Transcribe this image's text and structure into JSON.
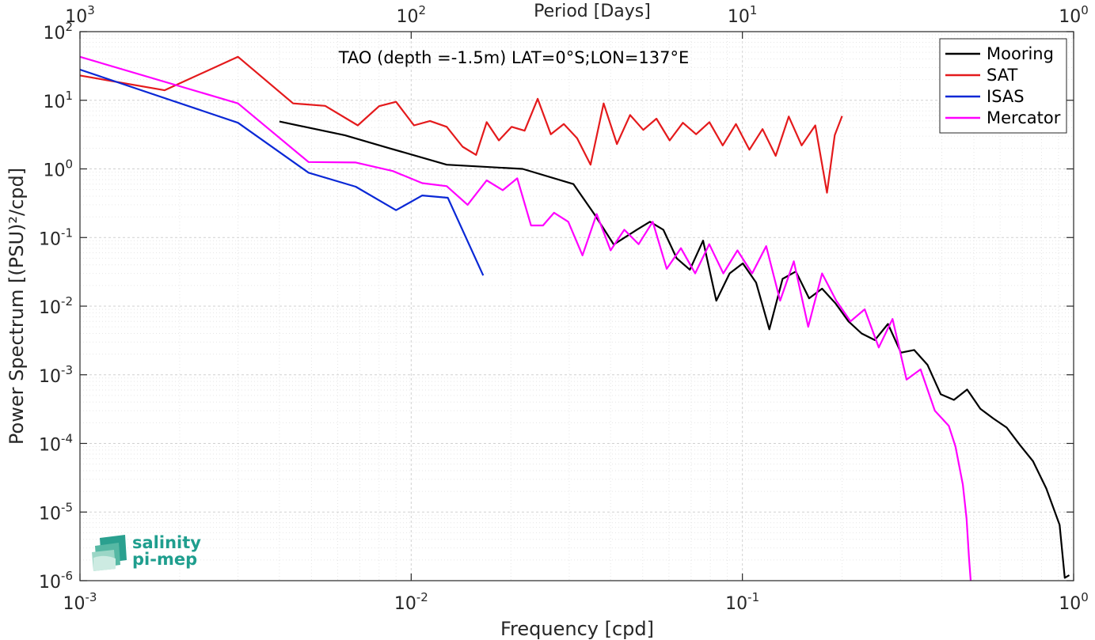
{
  "chart_data": {
    "type": "line",
    "title": "TAO (depth =-1.5m) LAT=0°S;LON=137°E",
    "xlabel": "Frequency [cpd]",
    "ylabel": "Power Spectrum [(PSU)²/cpd]",
    "top_xlabel": "Period [Days]",
    "xscale": "log",
    "yscale": "log",
    "xlim": [
      0.001,
      1
    ],
    "ylim": [
      1e-06,
      100
    ],
    "grid": true,
    "legend_position": "top-right",
    "x_ticks": [
      {
        "base": "10",
        "exp": "-3"
      },
      {
        "base": "10",
        "exp": "-2"
      },
      {
        "base": "10",
        "exp": "-1"
      },
      {
        "base": "10",
        "exp": "0"
      }
    ],
    "top_ticks": [
      {
        "base": "10",
        "exp": "3"
      },
      {
        "base": "10",
        "exp": "2"
      },
      {
        "base": "10",
        "exp": "1"
      },
      {
        "base": "10",
        "exp": "0"
      }
    ],
    "y_ticks": [
      {
        "base": "10",
        "exp": "-6"
      },
      {
        "base": "10",
        "exp": "-5"
      },
      {
        "base": "10",
        "exp": "-4"
      },
      {
        "base": "10",
        "exp": "-3"
      },
      {
        "base": "10",
        "exp": "-2"
      },
      {
        "base": "10",
        "exp": "-1"
      },
      {
        "base": "10",
        "exp": "0"
      },
      {
        "base": "10",
        "exp": "1"
      },
      {
        "base": "10",
        "exp": "2"
      }
    ],
    "series": [
      {
        "name": "Mooring",
        "color": "#000000",
        "points": [
          [
            0.004,
            4.9
          ],
          [
            0.0063,
            3.1
          ],
          [
            0.0086,
            2.0
          ],
          [
            0.0128,
            1.15
          ],
          [
            0.0217,
            1.0
          ],
          [
            0.0309,
            0.6
          ],
          [
            0.0357,
            0.22
          ],
          [
            0.0409,
            0.079
          ],
          [
            0.048,
            0.13
          ],
          [
            0.0526,
            0.17
          ],
          [
            0.0577,
            0.13
          ],
          [
            0.0633,
            0.05
          ],
          [
            0.0694,
            0.034
          ],
          [
            0.0761,
            0.09
          ],
          [
            0.0834,
            0.012
          ],
          [
            0.0915,
            0.03
          ],
          [
            0.1003,
            0.042
          ],
          [
            0.11,
            0.022
          ],
          [
            0.1206,
            0.0046
          ],
          [
            0.1322,
            0.025
          ],
          [
            0.145,
            0.032
          ],
          [
            0.159,
            0.013
          ],
          [
            0.174,
            0.018
          ],
          [
            0.191,
            0.011
          ],
          [
            0.209,
            0.006
          ],
          [
            0.229,
            0.004
          ],
          [
            0.251,
            0.0032
          ],
          [
            0.275,
            0.0055
          ],
          [
            0.301,
            0.0021
          ],
          [
            0.33,
            0.0023
          ],
          [
            0.362,
            0.0014
          ],
          [
            0.397,
            0.00052
          ],
          [
            0.435,
            0.00043
          ],
          [
            0.477,
            0.00061
          ],
          [
            0.523,
            0.00032
          ],
          [
            0.573,
            0.00023
          ],
          [
            0.628,
            0.00017
          ],
          [
            0.688,
            9.5e-05
          ],
          [
            0.754,
            5.5e-05
          ],
          [
            0.827,
            2.2e-05
          ],
          [
            0.907,
            6.5e-06
          ],
          [
            0.94,
            1.1e-06
          ],
          [
            0.97,
            1.2e-06
          ]
        ]
      },
      {
        "name": "SAT",
        "color": "#e41a1c",
        "points": [
          [
            0.001,
            23
          ],
          [
            0.0018,
            14
          ],
          [
            0.003,
            43
          ],
          [
            0.0044,
            9.0
          ],
          [
            0.0055,
            8.3
          ],
          [
            0.0069,
            4.3
          ],
          [
            0.008,
            8.2
          ],
          [
            0.009,
            9.5
          ],
          [
            0.0102,
            4.3
          ],
          [
            0.0114,
            5.0
          ],
          [
            0.0128,
            4.1
          ],
          [
            0.0143,
            2.1
          ],
          [
            0.0157,
            1.6
          ],
          [
            0.0169,
            4.8
          ],
          [
            0.0184,
            2.6
          ],
          [
            0.0201,
            4.1
          ],
          [
            0.022,
            3.6
          ],
          [
            0.0241,
            10.5
          ],
          [
            0.0264,
            3.2
          ],
          [
            0.0289,
            4.5
          ],
          [
            0.0317,
            2.8
          ],
          [
            0.0348,
            1.15
          ],
          [
            0.0381,
            9.0
          ],
          [
            0.0418,
            2.3
          ],
          [
            0.0458,
            6.1
          ],
          [
            0.0502,
            3.7
          ],
          [
            0.055,
            5.4
          ],
          [
            0.0603,
            2.6
          ],
          [
            0.0661,
            4.7
          ],
          [
            0.0725,
            3.2
          ],
          [
            0.0795,
            4.8
          ],
          [
            0.0872,
            2.2
          ],
          [
            0.0956,
            4.5
          ],
          [
            0.105,
            1.9
          ],
          [
            0.115,
            3.8
          ],
          [
            0.126,
            1.55
          ],
          [
            0.138,
            5.8
          ],
          [
            0.151,
            2.2
          ],
          [
            0.166,
            4.3
          ],
          [
            0.18,
            0.45
          ],
          [
            0.19,
            3.1
          ],
          [
            0.2,
            5.9
          ]
        ]
      },
      {
        "name": "ISAS",
        "color": "#0a28d6",
        "points": [
          [
            0.001,
            28
          ],
          [
            0.003,
            4.7
          ],
          [
            0.0049,
            0.88
          ],
          [
            0.0068,
            0.55
          ],
          [
            0.009,
            0.25
          ],
          [
            0.0108,
            0.41
          ],
          [
            0.0129,
            0.38
          ],
          [
            0.0165,
            0.028
          ]
        ]
      },
      {
        "name": "Mercator",
        "color": "#ff00ff",
        "points": [
          [
            0.001,
            43
          ],
          [
            0.003,
            9.0
          ],
          [
            0.0049,
            1.26
          ],
          [
            0.0068,
            1.24
          ],
          [
            0.0088,
            0.93
          ],
          [
            0.0108,
            0.62
          ],
          [
            0.0128,
            0.56
          ],
          [
            0.0148,
            0.3
          ],
          [
            0.0169,
            0.68
          ],
          [
            0.0189,
            0.49
          ],
          [
            0.0209,
            0.73
          ],
          [
            0.023,
            0.15
          ],
          [
            0.025,
            0.15
          ],
          [
            0.027,
            0.23
          ],
          [
            0.0298,
            0.17
          ],
          [
            0.0329,
            0.055
          ],
          [
            0.0363,
            0.22
          ],
          [
            0.04,
            0.065
          ],
          [
            0.044,
            0.13
          ],
          [
            0.0486,
            0.08
          ],
          [
            0.0536,
            0.17
          ],
          [
            0.0591,
            0.035
          ],
          [
            0.0652,
            0.07
          ],
          [
            0.072,
            0.03
          ],
          [
            0.0794,
            0.08
          ],
          [
            0.0876,
            0.03
          ],
          [
            0.0966,
            0.065
          ],
          [
            0.107,
            0.03
          ],
          [
            0.118,
            0.075
          ],
          [
            0.13,
            0.012
          ],
          [
            0.143,
            0.045
          ],
          [
            0.158,
            0.005
          ],
          [
            0.174,
            0.03
          ],
          [
            0.192,
            0.012
          ],
          [
            0.212,
            0.006
          ],
          [
            0.234,
            0.009
          ],
          [
            0.258,
            0.0025
          ],
          [
            0.284,
            0.0065
          ],
          [
            0.313,
            0.00085
          ],
          [
            0.345,
            0.0012
          ],
          [
            0.381,
            0.0003
          ],
          [
            0.42,
            0.00018
          ],
          [
            0.44,
            9e-05
          ],
          [
            0.463,
            2.5e-05
          ],
          [
            0.475,
            8e-06
          ],
          [
            0.483,
            2.2e-06
          ],
          [
            0.489,
            1e-06
          ]
        ]
      }
    ]
  },
  "logo": {
    "line1": "salinity",
    "line2": "pi-mep"
  }
}
